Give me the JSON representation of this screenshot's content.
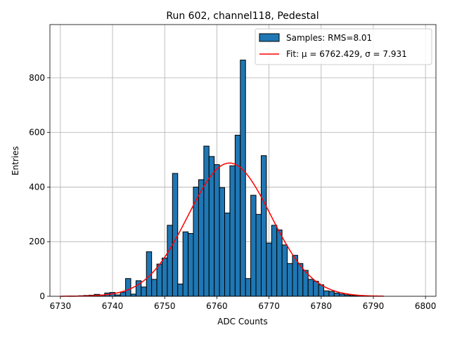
{
  "chart_data": {
    "type": "bar",
    "title": "Run 602, channel118, Pedestal",
    "xlabel": "ADC Counts",
    "ylabel": "Entries",
    "xlim": [
      6728,
      6802
    ],
    "ylim": [
      0,
      995
    ],
    "xticks": [
      6730,
      6740,
      6750,
      6760,
      6770,
      6780,
      6790,
      6800
    ],
    "yticks": [
      0,
      200,
      400,
      600,
      800
    ],
    "grid": true,
    "legend_position": "top-right",
    "bin_width": 1,
    "series": [
      {
        "name": "Samples: RMS=8.01",
        "kind": "histogram",
        "color": "#1f77b4",
        "edge_color": "#000000",
        "bins": [
          {
            "x": 6732,
            "y": 1
          },
          {
            "x": 6733,
            "y": 1
          },
          {
            "x": 6734,
            "y": 2
          },
          {
            "x": 6735,
            "y": 3
          },
          {
            "x": 6736,
            "y": 4
          },
          {
            "x": 6737,
            "y": 7
          },
          {
            "x": 6738,
            "y": 5
          },
          {
            "x": 6739,
            "y": 12
          },
          {
            "x": 6740,
            "y": 14
          },
          {
            "x": 6741,
            "y": 5
          },
          {
            "x": 6742,
            "y": 15
          },
          {
            "x": 6743,
            "y": 65
          },
          {
            "x": 6744,
            "y": 8
          },
          {
            "x": 6745,
            "y": 57
          },
          {
            "x": 6746,
            "y": 34
          },
          {
            "x": 6747,
            "y": 163
          },
          {
            "x": 6748,
            "y": 62
          },
          {
            "x": 6749,
            "y": 118
          },
          {
            "x": 6750,
            "y": 140
          },
          {
            "x": 6751,
            "y": 260
          },
          {
            "x": 6752,
            "y": 450
          },
          {
            "x": 6753,
            "y": 45
          },
          {
            "x": 6754,
            "y": 236
          },
          {
            "x": 6755,
            "y": 230
          },
          {
            "x": 6756,
            "y": 400
          },
          {
            "x": 6757,
            "y": 427
          },
          {
            "x": 6758,
            "y": 550
          },
          {
            "x": 6759,
            "y": 512
          },
          {
            "x": 6760,
            "y": 482
          },
          {
            "x": 6761,
            "y": 398
          },
          {
            "x": 6762,
            "y": 305
          },
          {
            "x": 6763,
            "y": 478
          },
          {
            "x": 6764,
            "y": 590
          },
          {
            "x": 6765,
            "y": 865
          },
          {
            "x": 6766,
            "y": 65
          },
          {
            "x": 6767,
            "y": 370
          },
          {
            "x": 6768,
            "y": 300
          },
          {
            "x": 6769,
            "y": 515
          },
          {
            "x": 6770,
            "y": 195
          },
          {
            "x": 6771,
            "y": 260
          },
          {
            "x": 6772,
            "y": 243
          },
          {
            "x": 6773,
            "y": 188
          },
          {
            "x": 6774,
            "y": 120
          },
          {
            "x": 6775,
            "y": 150
          },
          {
            "x": 6776,
            "y": 120
          },
          {
            "x": 6777,
            "y": 95
          },
          {
            "x": 6778,
            "y": 62
          },
          {
            "x": 6779,
            "y": 55
          },
          {
            "x": 6780,
            "y": 42
          },
          {
            "x": 6781,
            "y": 20
          },
          {
            "x": 6782,
            "y": 18
          },
          {
            "x": 6783,
            "y": 12
          },
          {
            "x": 6784,
            "y": 8
          },
          {
            "x": 6785,
            "y": 5
          },
          {
            "x": 6786,
            "y": 3
          },
          {
            "x": 6787,
            "y": 2
          },
          {
            "x": 6788,
            "y": 1
          },
          {
            "x": 6789,
            "y": 1
          }
        ]
      },
      {
        "name": "Fit: μ = 6762.429, σ = 7.931",
        "kind": "gaussian-fit",
        "color": "#ff0000",
        "mu": 6762.429,
        "sigma": 7.931,
        "amplitude": 488,
        "x_range": [
          6730,
          6792
        ]
      }
    ]
  }
}
